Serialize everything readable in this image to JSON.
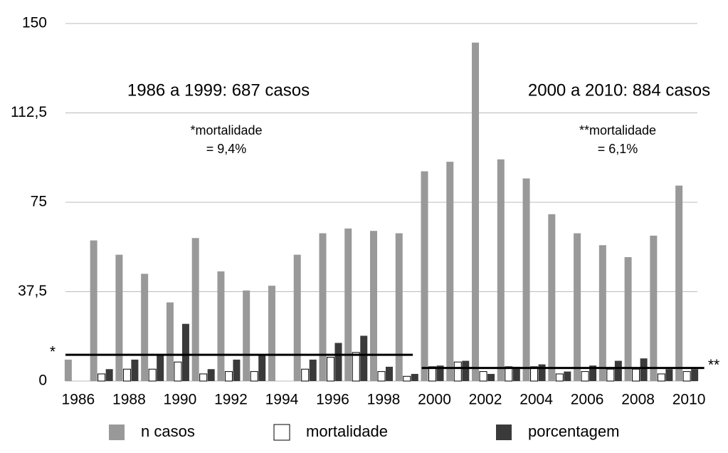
{
  "chart_data": {
    "type": "bar",
    "x": [
      1986,
      1987,
      1988,
      1989,
      1990,
      1991,
      1992,
      1993,
      1994,
      1995,
      1996,
      1997,
      1998,
      1999,
      2000,
      2001,
      2002,
      2003,
      2004,
      2005,
      2006,
      2007,
      2008,
      2009,
      2010
    ],
    "xlim": [
      1985.5,
      2010.5
    ],
    "xticks": [
      1986,
      1988,
      1990,
      1992,
      1994,
      1996,
      1998,
      2000,
      2002,
      2004,
      2006,
      2008,
      2010
    ],
    "ylim": [
      0,
      150
    ],
    "yticks": [
      0,
      {
        "value": 37.5,
        "label": "37,5"
      },
      75,
      {
        "value": 112.5,
        "label": "112,5"
      },
      150
    ],
    "grid": true,
    "legend": "bottom",
    "series": [
      {
        "name": "n casos",
        "color": "#999999",
        "values": [
          9,
          59,
          53,
          45,
          33,
          60,
          46,
          38,
          40,
          53,
          62,
          64,
          63,
          62,
          88,
          92,
          142,
          93,
          85,
          70,
          62,
          57,
          52,
          61,
          82
        ]
      },
      {
        "name": "mortalidade",
        "color": "#ffffff",
        "values": [
          0,
          3,
          5,
          5,
          8,
          3,
          4,
          4,
          0,
          5,
          10,
          12,
          4,
          2,
          6,
          8,
          4,
          6,
          6,
          3,
          4,
          5,
          5,
          3,
          4
        ]
      },
      {
        "name": "porcentagem",
        "color": "#3a3a3a",
        "values": [
          0,
          5,
          9,
          11,
          24,
          5,
          9,
          11,
          0,
          9,
          16,
          19,
          6,
          3,
          6.5,
          8.5,
          3,
          6,
          7,
          4,
          6.5,
          8.5,
          9.5,
          5,
          5
        ]
      }
    ],
    "reference_lines": [
      {
        "label": "*",
        "value": 11,
        "x": [
          1985.5,
          1999.15
        ]
      },
      {
        "label": "**",
        "value": 5.5,
        "x": [
          1999.5,
          2010.6
        ]
      }
    ],
    "annotations": [
      "1986 a 1999: 687 casos",
      "*mortalidade",
      "= 9,4%",
      "2000 a 2010: 884 casos",
      "**mortalidade",
      "= 6,1%"
    ]
  }
}
